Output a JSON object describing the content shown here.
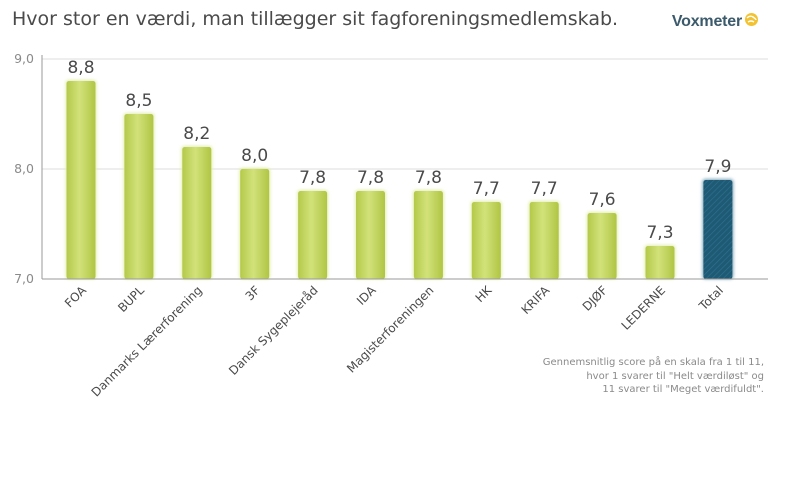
{
  "header": {
    "title": "Hvor stor en værdi, man tillægger sit fagforeningsmedlemskab.",
    "brand": "Voxmeter"
  },
  "footnote": {
    "lines": [
      "Gennemsnitlig score på en skala fra 1 til 11,",
      "hvor 1 svarer til \"Helt værdiløst\" og",
      "11 svarer til \"Meget værdifuldt\"."
    ]
  },
  "colors": {
    "bar": "#c6d85e",
    "bar_total": "#1e5a74",
    "axis": "#9a9a9a",
    "grid": "#dddddd",
    "logo_icon": "#f2c230"
  },
  "chart_data": {
    "type": "bar",
    "title": "Hvor stor en værdi, man tillægger sit fagforeningsmedlemskab.",
    "xlabel": "",
    "ylabel": "",
    "ylim": [
      7.0,
      9.0
    ],
    "yticks": [
      "7,0",
      "8,0",
      "9,0"
    ],
    "ytick_values": [
      7.0,
      8.0,
      9.0
    ],
    "grid": true,
    "categories": [
      "FOA",
      "BUPL",
      "Danmarks Lærerforening",
      "3F",
      "Dansk Sygeplejeråd",
      "IDA",
      "Magisterforeningen",
      "HK",
      "KRIFA",
      "DJØF",
      "LEDERNE",
      "Total"
    ],
    "values": [
      8.8,
      8.5,
      8.2,
      8.0,
      7.8,
      7.8,
      7.8,
      7.7,
      7.7,
      7.6,
      7.3,
      7.9
    ],
    "value_labels": [
      "8,8",
      "8,5",
      "8,2",
      "8,0",
      "7,8",
      "7,8",
      "7,8",
      "7,7",
      "7,7",
      "7,6",
      "7,3",
      "7,9"
    ],
    "highlight": "Total"
  }
}
